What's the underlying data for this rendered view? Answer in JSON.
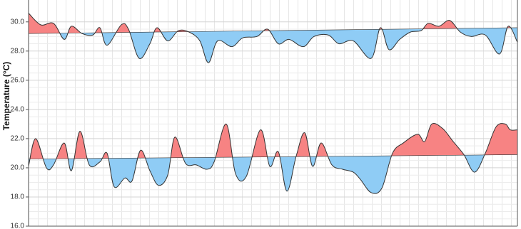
{
  "chart_data": {
    "type": "deviation-area",
    "y_label": "Temperature (°C)",
    "ylim": [
      16,
      31.5
    ],
    "yticks": [
      {
        "value": 16,
        "label": "16.0"
      },
      {
        "value": 18,
        "label": "18.0"
      },
      {
        "value": 20,
        "label": "20.0"
      },
      {
        "value": 22,
        "label": "22.0"
      },
      {
        "value": 24,
        "label": "24.0"
      },
      {
        "value": 26,
        "label": "26.0"
      },
      {
        "value": 28,
        "label": "28.0"
      },
      {
        "value": 30,
        "label": "30.0"
      }
    ],
    "xlim": [
      0,
      685
    ],
    "grid": true,
    "above_color": "#f78383",
    "below_color": "#8fccf5",
    "line_color": "#333333",
    "series": [
      {
        "x": [
          0,
          17,
          35,
          50,
          60,
          75,
          90,
          100,
          110,
          130,
          140,
          155,
          170,
          180,
          195,
          210,
          225,
          240,
          252,
          265,
          285,
          300,
          320,
          335,
          350,
          365,
          385,
          400,
          420,
          435,
          455,
          480,
          493,
          505,
          520,
          535,
          550,
          560,
          575,
          590,
          605,
          620,
          640,
          660,
          672,
          685
        ],
        "values": [
          30.6,
          29.8,
          29.9,
          28.8,
          29.7,
          29.2,
          29.1,
          29.6,
          28.4,
          29.8,
          29.5,
          27.5,
          28.5,
          29.6,
          28.7,
          29.4,
          29.3,
          28.7,
          27.2,
          28.7,
          28.3,
          28.9,
          29.0,
          29.5,
          28.5,
          28.8,
          28.3,
          29.0,
          29.1,
          28.5,
          28.7,
          27.5,
          29.6,
          28.1,
          28.8,
          29.3,
          29.4,
          29.9,
          29.7,
          30.1,
          29.3,
          29.0,
          29.1,
          27.8,
          29.7,
          28.6
        ],
        "baseline_x": [
          0,
          685
        ],
        "baseline": [
          29.2,
          29.6
        ]
      },
      {
        "x": [
          0,
          10,
          25,
          35,
          50,
          60,
          72,
          85,
          100,
          110,
          120,
          135,
          145,
          157,
          170,
          182,
          195,
          205,
          220,
          235,
          250,
          260,
          277,
          290,
          305,
          325,
          338,
          350,
          362,
          375,
          387,
          398,
          410,
          425,
          440,
          455,
          465,
          480,
          495,
          510,
          525,
          545,
          555,
          565,
          580,
          595,
          610,
          625,
          640,
          655,
          668,
          675,
          685
        ],
        "values": [
          20.1,
          22.0,
          20.0,
          20.2,
          21.7,
          19.8,
          22.5,
          20.2,
          20.4,
          21.0,
          18.7,
          19.3,
          19.1,
          21.2,
          19.8,
          18.8,
          19.5,
          22.1,
          20.3,
          20.2,
          19.9,
          20.4,
          23.0,
          19.6,
          19.4,
          22.6,
          20.1,
          21.1,
          18.4,
          20.8,
          22.4,
          20.1,
          21.7,
          20.2,
          19.9,
          19.7,
          19.2,
          18.3,
          18.6,
          21.0,
          21.7,
          22.3,
          21.8,
          23.0,
          22.7,
          21.8,
          20.9,
          19.7,
          21.0,
          22.8,
          23.0,
          22.6,
          22.6
        ],
        "baseline_x": [
          0,
          685
        ],
        "baseline": [
          20.6,
          20.9
        ]
      }
    ]
  }
}
